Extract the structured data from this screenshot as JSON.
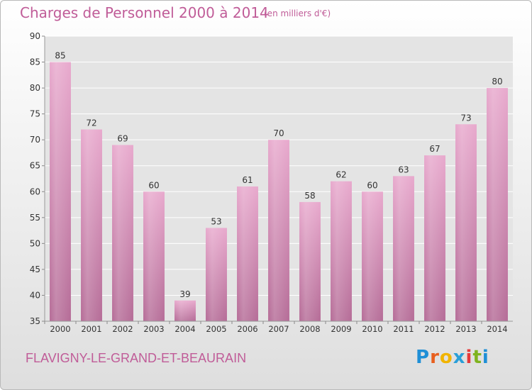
{
  "header": {
    "title": "Charges de Personnel 2000 à 2014",
    "subtitle": "(en milliers d'€)"
  },
  "footer": {
    "commune": "FLAVIGNY-LE-GRAND-ET-BEAURAIN",
    "logo_letters": [
      "P",
      "r",
      "o",
      "x",
      "i",
      "t",
      "i"
    ]
  },
  "colors": {
    "bar_top": "#e8a9cd",
    "bar_bottom": "#b56c97",
    "plot_bg": "#e4e4e4",
    "axis_text": "#333333",
    "accent": "#c05c98",
    "logo": [
      "#1f8fd6",
      "#e85f1e",
      "#f1b400",
      "#2a9fd8",
      "#e63a3a",
      "#7fb31f",
      "#1f8fd6"
    ]
  },
  "chart_data": {
    "type": "bar",
    "categories": [
      "2000",
      "2001",
      "2002",
      "2003",
      "2004",
      "2005",
      "2006",
      "2007",
      "2008",
      "2009",
      "2010",
      "2011",
      "2012",
      "2013",
      "2014"
    ],
    "values": [
      85,
      72,
      69,
      60,
      39,
      53,
      61,
      70,
      58,
      62,
      60,
      63,
      67,
      73,
      80
    ],
    "yticks": [
      35,
      40,
      45,
      50,
      55,
      60,
      65,
      70,
      75,
      80,
      85,
      90
    ],
    "ylim": [
      35,
      90
    ],
    "grid": "horizontal",
    "data_labels": true
  }
}
